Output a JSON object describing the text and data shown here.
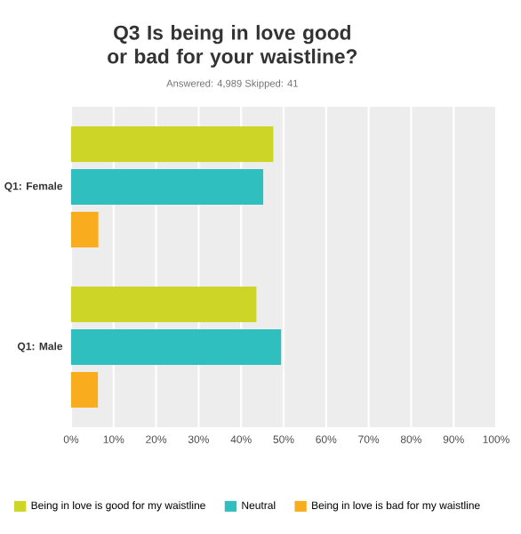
{
  "chart_data": {
    "type": "bar",
    "orientation": "horizontal",
    "title": "Q3 Is being in love good or bad for your waistline?",
    "subtitle": "Answered: 4,989    Skipped: 41",
    "categories": [
      "Q1: Female",
      "Q1: Male"
    ],
    "series": [
      {
        "name": "Being in love is good for my waistline",
        "color": "#cdd527",
        "values": [
          47.6,
          43.6
        ]
      },
      {
        "name": "Neutral",
        "color": "#30bfbf",
        "values": [
          45.2,
          49.4
        ]
      },
      {
        "name": "Being in love is bad for my waistline",
        "color": "#f9ac1e",
        "values": [
          6.4,
          6.3
        ]
      }
    ],
    "xlim": [
      0,
      100
    ],
    "xticks": [
      {
        "value": 0,
        "label": "0%"
      },
      {
        "value": 10,
        "label": "10%"
      },
      {
        "value": 20,
        "label": "20%"
      },
      {
        "value": 30,
        "label": "30%"
      },
      {
        "value": 40,
        "label": "40%"
      },
      {
        "value": 50,
        "label": "50%"
      },
      {
        "value": 60,
        "label": "60%"
      },
      {
        "value": 70,
        "label": "70%"
      },
      {
        "value": 80,
        "label": "80%"
      },
      {
        "value": 90,
        "label": "90%"
      },
      {
        "value": 100,
        "label": "100%"
      }
    ],
    "grid": "x",
    "legend": "bottom"
  }
}
